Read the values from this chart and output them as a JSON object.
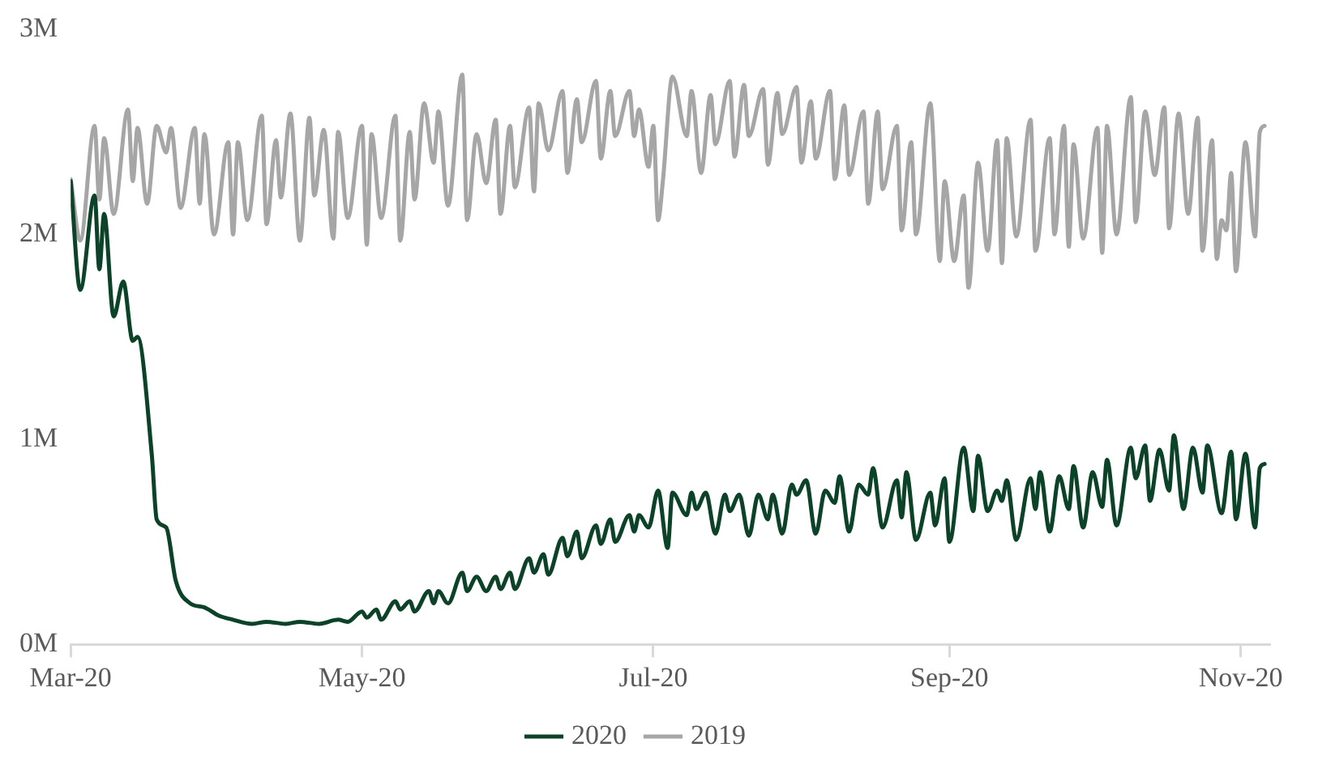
{
  "chart_data": {
    "type": "line",
    "xlim": [
      "2020-03-01",
      "2020-11-07"
    ],
    "xticks": [
      {
        "value": "2020-03-01",
        "label": "Mar-20"
      },
      {
        "value": "2020-05-01",
        "label": "May-20"
      },
      {
        "value": "2020-07-01",
        "label": "Jul-20"
      },
      {
        "value": "2020-09-01",
        "label": "Sep-20"
      },
      {
        "value": "2020-11-01",
        "label": "Nov-20"
      }
    ],
    "ylim": [
      0,
      3
    ],
    "yticks": [
      {
        "value": 0,
        "label": "0M"
      },
      {
        "value": 1,
        "label": "1M"
      },
      {
        "value": 2,
        "label": "2M"
      },
      {
        "value": 3,
        "label": "3M"
      }
    ],
    "grid": false,
    "legend": "bottom",
    "marker": "none",
    "line_style": "solid",
    "series": [
      {
        "name": "2020",
        "color": "#0b4228",
        "x": [
          "2020-03-01",
          "2020-03-03",
          "2020-03-06",
          "2020-03-07",
          "2020-03-08",
          "2020-03-10",
          "2020-03-12",
          "2020-03-14",
          "2020-03-15",
          "2020-03-18",
          "2020-03-19",
          "2020-03-21",
          "2020-03-23",
          "2020-03-26",
          "2020-03-29",
          "2020-04-01",
          "2020-04-04",
          "2020-04-08",
          "2020-04-11",
          "2020-04-15",
          "2020-04-18",
          "2020-04-22",
          "2020-04-26",
          "2020-04-28",
          "2020-05-01",
          "2020-05-02",
          "2020-05-04",
          "2020-05-05",
          "2020-05-08",
          "2020-05-09",
          "2020-05-11",
          "2020-05-12",
          "2020-05-15",
          "2020-05-16",
          "2020-05-17",
          "2020-05-19",
          "2020-05-22",
          "2020-05-23",
          "2020-05-25",
          "2020-05-27",
          "2020-05-29",
          "2020-05-30",
          "2020-06-01",
          "2020-06-02",
          "2020-06-05",
          "2020-06-06",
          "2020-06-08",
          "2020-06-09",
          "2020-06-12",
          "2020-06-13",
          "2020-06-15",
          "2020-06-16",
          "2020-06-19",
          "2020-06-20",
          "2020-06-22",
          "2020-06-23",
          "2020-06-26",
          "2020-06-27",
          "2020-06-28",
          "2020-06-30",
          "2020-07-02",
          "2020-07-04",
          "2020-07-05",
          "2020-07-08",
          "2020-07-09",
          "2020-07-10",
          "2020-07-12",
          "2020-07-14",
          "2020-07-16",
          "2020-07-17",
          "2020-07-19",
          "2020-07-21",
          "2020-07-23",
          "2020-07-25",
          "2020-07-26",
          "2020-07-28",
          "2020-07-30",
          "2020-07-31",
          "2020-08-02",
          "2020-08-04",
          "2020-08-06",
          "2020-08-08",
          "2020-08-09",
          "2020-08-11",
          "2020-08-13",
          "2020-08-15",
          "2020-08-16",
          "2020-08-18",
          "2020-08-21",
          "2020-08-22",
          "2020-08-23",
          "2020-08-25",
          "2020-08-28",
          "2020-08-29",
          "2020-08-31",
          "2020-09-01",
          "2020-09-04",
          "2020-09-06",
          "2020-09-07",
          "2020-09-09",
          "2020-09-11",
          "2020-09-12",
          "2020-09-13",
          "2020-09-15",
          "2020-09-18",
          "2020-09-19",
          "2020-09-20",
          "2020-09-22",
          "2020-09-24",
          "2020-09-26",
          "2020-09-27",
          "2020-09-29",
          "2020-10-01",
          "2020-10-03",
          "2020-10-04",
          "2020-10-06",
          "2020-10-09",
          "2020-10-10",
          "2020-10-12",
          "2020-10-13",
          "2020-10-15",
          "2020-10-17",
          "2020-10-18",
          "2020-10-20",
          "2020-10-22",
          "2020-10-24",
          "2020-10-25",
          "2020-10-28",
          "2020-10-30",
          "2020-10-31",
          "2020-11-02",
          "2020-11-04",
          "2020-11-05",
          "2020-11-06"
        ],
        "values": [
          2.26,
          1.73,
          2.19,
          1.83,
          2.1,
          1.6,
          1.77,
          1.48,
          1.5,
          0.92,
          0.61,
          0.57,
          0.31,
          0.2,
          0.18,
          0.14,
          0.12,
          0.1,
          0.11,
          0.1,
          0.11,
          0.1,
          0.12,
          0.11,
          0.16,
          0.13,
          0.17,
          0.12,
          0.21,
          0.17,
          0.21,
          0.16,
          0.26,
          0.2,
          0.26,
          0.2,
          0.35,
          0.26,
          0.33,
          0.26,
          0.33,
          0.27,
          0.35,
          0.27,
          0.42,
          0.35,
          0.44,
          0.34,
          0.52,
          0.43,
          0.55,
          0.42,
          0.58,
          0.49,
          0.61,
          0.5,
          0.63,
          0.55,
          0.63,
          0.57,
          0.75,
          0.47,
          0.74,
          0.63,
          0.74,
          0.66,
          0.74,
          0.54,
          0.73,
          0.65,
          0.73,
          0.53,
          0.73,
          0.61,
          0.73,
          0.54,
          0.78,
          0.73,
          0.8,
          0.54,
          0.75,
          0.69,
          0.82,
          0.55,
          0.78,
          0.73,
          0.86,
          0.57,
          0.8,
          0.62,
          0.84,
          0.51,
          0.74,
          0.58,
          0.81,
          0.5,
          0.96,
          0.65,
          0.92,
          0.65,
          0.75,
          0.7,
          0.8,
          0.51,
          0.81,
          0.66,
          0.84,
          0.55,
          0.82,
          0.66,
          0.87,
          0.57,
          0.84,
          0.67,
          0.9,
          0.58,
          0.96,
          0.81,
          0.97,
          0.7,
          0.95,
          0.75,
          1.02,
          0.66,
          0.96,
          0.74,
          0.97,
          0.64,
          0.94,
          0.61,
          0.93,
          0.57,
          0.86,
          0.88
        ]
      },
      {
        "name": "2019",
        "color": "#a6a6a6",
        "x": [
          "2020-03-01",
          "2020-03-03",
          "2020-03-06",
          "2020-03-07",
          "2020-03-08",
          "2020-03-10",
          "2020-03-13",
          "2020-03-14",
          "2020-03-15",
          "2020-03-17",
          "2020-03-19",
          "2020-03-21",
          "2020-03-22",
          "2020-03-24",
          "2020-03-27",
          "2020-03-28",
          "2020-03-29",
          "2020-03-31",
          "2020-04-03",
          "2020-04-04",
          "2020-04-05",
          "2020-04-07",
          "2020-04-10",
          "2020-04-11",
          "2020-04-13",
          "2020-04-14",
          "2020-04-16",
          "2020-04-18",
          "2020-04-20",
          "2020-04-21",
          "2020-04-23",
          "2020-04-25",
          "2020-04-26",
          "2020-04-28",
          "2020-05-01",
          "2020-05-02",
          "2020-05-03",
          "2020-05-05",
          "2020-05-08",
          "2020-05-09",
          "2020-05-11",
          "2020-05-12",
          "2020-05-14",
          "2020-05-16",
          "2020-05-17",
          "2020-05-19",
          "2020-05-22",
          "2020-05-23",
          "2020-05-25",
          "2020-05-27",
          "2020-05-29",
          "2020-05-30",
          "2020-06-01",
          "2020-06-02",
          "2020-06-05",
          "2020-06-06",
          "2020-06-07",
          "2020-06-09",
          "2020-06-12",
          "2020-06-13",
          "2020-06-15",
          "2020-06-16",
          "2020-06-19",
          "2020-06-20",
          "2020-06-22",
          "2020-06-23",
          "2020-06-26",
          "2020-06-27",
          "2020-06-28",
          "2020-06-30",
          "2020-07-01",
          "2020-07-02",
          "2020-07-03",
          "2020-07-05",
          "2020-07-08",
          "2020-07-09",
          "2020-07-11",
          "2020-07-13",
          "2020-07-14",
          "2020-07-17",
          "2020-07-18",
          "2020-07-20",
          "2020-07-21",
          "2020-07-24",
          "2020-07-25",
          "2020-07-27",
          "2020-07-28",
          "2020-07-31",
          "2020-08-01",
          "2020-08-03",
          "2020-08-04",
          "2020-08-07",
          "2020-08-08",
          "2020-08-10",
          "2020-08-11",
          "2020-08-14",
          "2020-08-15",
          "2020-08-17",
          "2020-08-18",
          "2020-08-21",
          "2020-08-22",
          "2020-08-24",
          "2020-08-25",
          "2020-08-28",
          "2020-08-30",
          "2020-08-31",
          "2020-09-02",
          "2020-09-04",
          "2020-09-05",
          "2020-09-07",
          "2020-09-09",
          "2020-09-11",
          "2020-09-12",
          "2020-09-13",
          "2020-09-15",
          "2020-09-18",
          "2020-09-19",
          "2020-09-22",
          "2020-09-23",
          "2020-09-25",
          "2020-09-26",
          "2020-09-27",
          "2020-09-29",
          "2020-10-02",
          "2020-10-03",
          "2020-10-04",
          "2020-10-06",
          "2020-10-09",
          "2020-10-10",
          "2020-10-12",
          "2020-10-14",
          "2020-10-16",
          "2020-10-17",
          "2020-10-19",
          "2020-10-21",
          "2020-10-23",
          "2020-10-24",
          "2020-10-26",
          "2020-10-27",
          "2020-10-28",
          "2020-10-29",
          "2020-10-30",
          "2020-10-31",
          "2020-11-02",
          "2020-11-04",
          "2020-11-05",
          "2020-11-06"
        ],
        "values": [
          2.27,
          1.97,
          2.53,
          2.17,
          2.47,
          2.1,
          2.61,
          2.26,
          2.52,
          2.15,
          2.53,
          2.4,
          2.52,
          2.13,
          2.52,
          2.15,
          2.49,
          2.0,
          2.45,
          2.0,
          2.45,
          2.07,
          2.58,
          2.05,
          2.46,
          2.18,
          2.59,
          1.97,
          2.57,
          2.19,
          2.51,
          1.98,
          2.5,
          2.08,
          2.53,
          1.95,
          2.49,
          2.08,
          2.58,
          1.97,
          2.5,
          2.17,
          2.64,
          2.35,
          2.6,
          2.14,
          2.78,
          2.07,
          2.49,
          2.25,
          2.56,
          2.1,
          2.53,
          2.23,
          2.62,
          2.21,
          2.64,
          2.41,
          2.7,
          2.3,
          2.66,
          2.45,
          2.75,
          2.37,
          2.7,
          2.48,
          2.7,
          2.48,
          2.61,
          2.33,
          2.53,
          2.07,
          2.26,
          2.77,
          2.48,
          2.7,
          2.3,
          2.68,
          2.44,
          2.75,
          2.38,
          2.73,
          2.48,
          2.71,
          2.34,
          2.69,
          2.49,
          2.72,
          2.35,
          2.65,
          2.37,
          2.7,
          2.27,
          2.63,
          2.29,
          2.6,
          2.15,
          2.6,
          2.22,
          2.53,
          2.02,
          2.45,
          2.0,
          2.64,
          1.87,
          2.26,
          1.87,
          2.19,
          1.74,
          2.35,
          1.92,
          2.46,
          1.86,
          2.47,
          1.99,
          2.56,
          1.92,
          2.47,
          2.0,
          2.53,
          1.94,
          2.44,
          1.98,
          2.52,
          1.91,
          2.53,
          2.0,
          2.67,
          2.06,
          2.6,
          2.29,
          2.62,
          2.03,
          2.59,
          2.1,
          2.57,
          1.92,
          2.46,
          1.88,
          2.07,
          2.02,
          2.3,
          1.82,
          2.45,
          1.99,
          2.5,
          2.53
        ]
      }
    ]
  }
}
